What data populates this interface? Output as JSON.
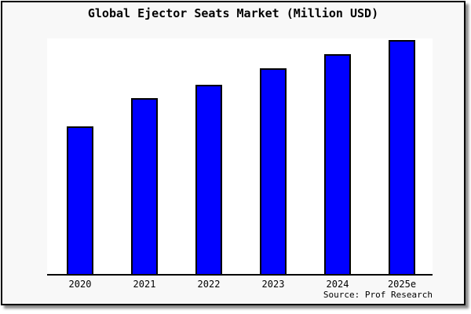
{
  "chart_data": {
    "type": "bar",
    "title": "Global Ejector Seats Market (Million USD)",
    "categories": [
      "2020",
      "2021",
      "2022",
      "2023",
      "2024",
      "2025e"
    ],
    "values": [
      63,
      75,
      81,
      88,
      94,
      100
    ],
    "value_note": "relative bar heights in % of tallest bar; y-axis has no visible scale or tick labels",
    "xlabel": "",
    "ylabel": "",
    "ylim": [
      0,
      100
    ],
    "grid": false,
    "legend": false,
    "source": "Source: Prof Research",
    "bar_color": "#0000ff",
    "bar_border_color": "#000000"
  },
  "colors": {
    "page_background": "#ffffff",
    "card_background": "#f8f8f8",
    "plot_background": "#ffffff",
    "axis": "#000000",
    "card_border": "#000000",
    "shadow": "#8a8a8a"
  }
}
